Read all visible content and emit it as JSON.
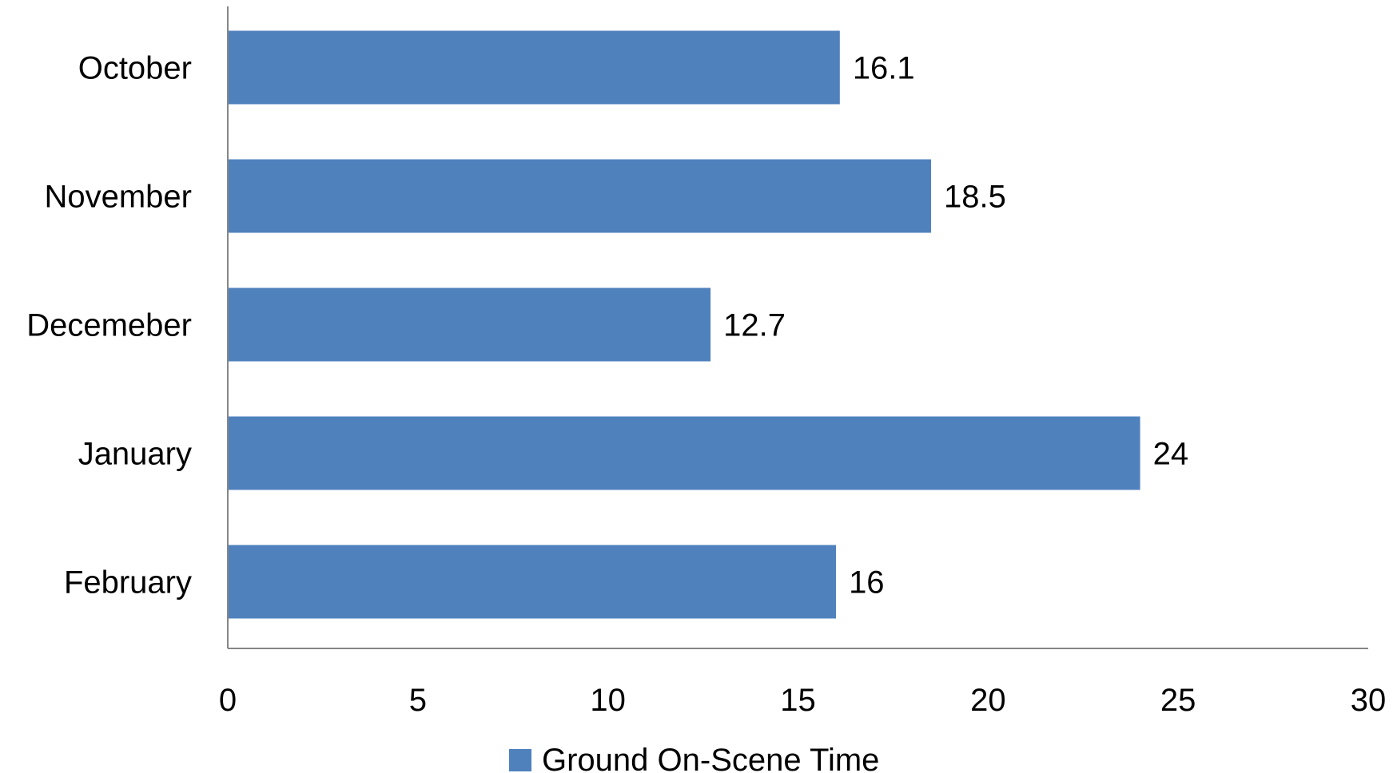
{
  "chart_data": {
    "type": "bar",
    "orientation": "horizontal",
    "categories": [
      "October",
      "November",
      "Decemeber",
      "January",
      "February"
    ],
    "series": [
      {
        "name": "Ground On-Scene Time",
        "values": [
          16.1,
          18.5,
          12.7,
          24,
          16
        ],
        "data_labels": [
          "16.1",
          "18.5",
          "12.7",
          "24",
          "16"
        ],
        "color": "#4f81bd"
      }
    ],
    "xlim": [
      0,
      30
    ],
    "x_ticks": [
      0,
      5,
      10,
      15,
      20,
      25,
      30
    ],
    "x_tick_labels": [
      "0",
      "5",
      "10",
      "15",
      "20",
      "25",
      "30"
    ],
    "title": "",
    "xlabel": "",
    "ylabel": "",
    "grid": false,
    "legend": {
      "position": "bottom",
      "entries": [
        "Ground On-Scene Time"
      ]
    }
  }
}
